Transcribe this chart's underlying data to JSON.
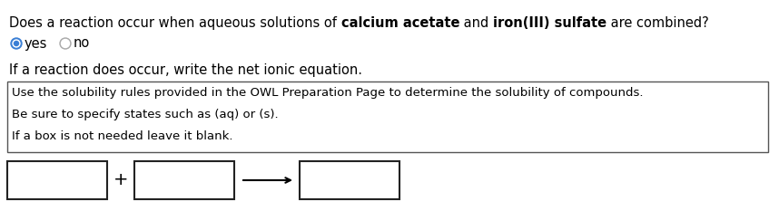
{
  "title_parts": [
    {
      "text": "Does a reaction occur when aqueous solutions of ",
      "bold": false
    },
    {
      "text": "calcium acetate",
      "bold": true
    },
    {
      "text": " and ",
      "bold": false
    },
    {
      "text": "iron(III) sulfate",
      "bold": true
    },
    {
      "text": " are combined?",
      "bold": false
    }
  ],
  "radio_yes_label": "yes",
  "radio_no_label": "no",
  "subtitle": "If a reaction does occur, write the net ionic equation.",
  "hint_box_text": [
    "Use the solubility rules provided in the OWL Preparation Page to determine the solubility of compounds.",
    "Be sure to specify states such as (aq) or (s).",
    "If a box is not needed leave it blank."
  ],
  "background_color": "#ffffff",
  "text_color": "#000000",
  "hint_font_size": 9.5,
  "title_font_size": 10.5,
  "radio_selected_color": "#3a7fd5",
  "radio_unselected_color": "#aaaaaa",
  "box_border_color": "#555555"
}
